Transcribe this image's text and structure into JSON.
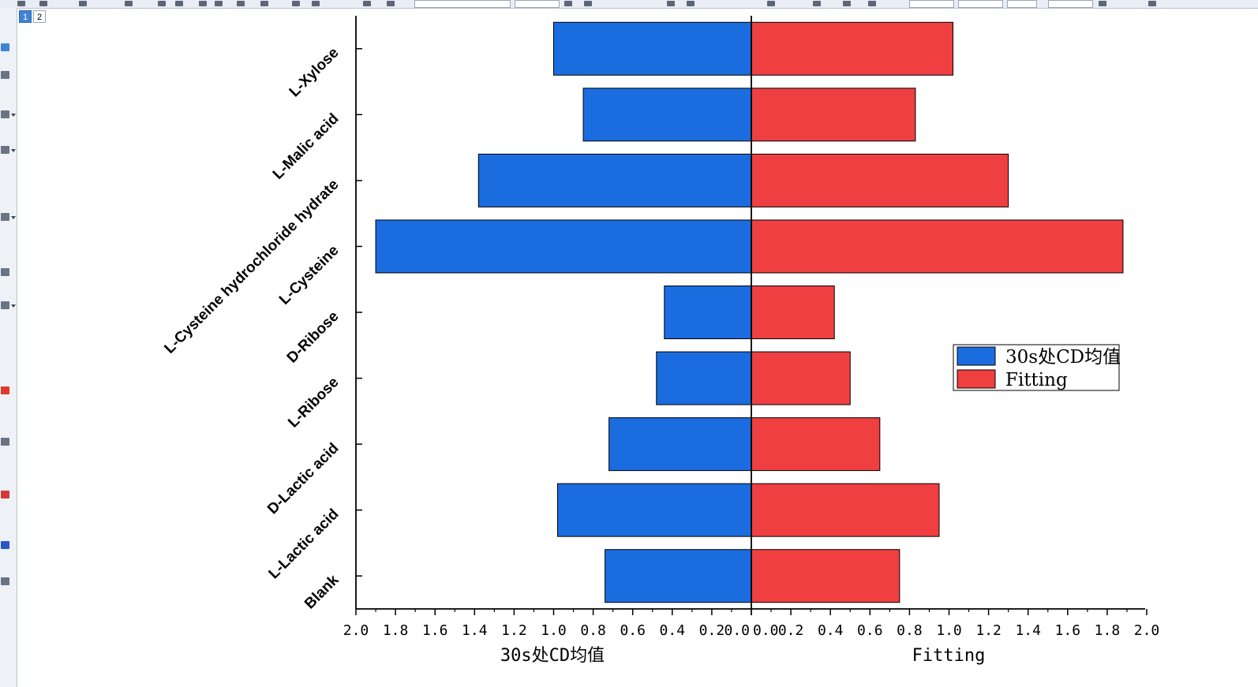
{
  "pages": {
    "tabs": [
      "1",
      "2"
    ],
    "active": "1"
  },
  "colors": {
    "left_series": "#1b6ddf",
    "right_series": "#ef3f41",
    "axis": "#000000"
  },
  "chart_data": {
    "type": "bar",
    "orientation": "horizontal-diverging",
    "categories": [
      "Blank",
      "L-Lactic acid",
      "D-Lactic acid",
      "L-Ribose",
      "D-Ribose",
      "L-Cysteine",
      "L-Cysteine hydrochloride hydrate",
      "L-Malic acid",
      "L-Xylose"
    ],
    "series": [
      {
        "name": "30s处CD均值",
        "side": "left",
        "values": [
          0.74,
          0.98,
          0.72,
          0.48,
          0.44,
          1.9,
          1.38,
          0.85,
          1.0
        ]
      },
      {
        "name": "Fitting",
        "side": "right",
        "values": [
          0.75,
          0.95,
          0.65,
          0.5,
          0.42,
          1.88,
          1.3,
          0.83,
          1.02
        ]
      }
    ],
    "left_axis": {
      "title": "30s处CD均值",
      "range": [
        2.0,
        0.0
      ],
      "ticks": [
        "2.0",
        "1.8",
        "1.6",
        "1.4",
        "1.2",
        "1.0",
        "0.8",
        "0.6",
        "0.4",
        "0.2",
        "0.0"
      ]
    },
    "right_axis": {
      "title": "Fitting",
      "range": [
        0.0,
        2.0
      ],
      "ticks": [
        "0.0",
        "0.2",
        "0.4",
        "0.6",
        "0.8",
        "1.0",
        "1.2",
        "1.4",
        "1.6",
        "1.8",
        "2.0"
      ]
    },
    "legend": {
      "position": "right-middle",
      "entries": [
        "30s处CD均值",
        "Fitting"
      ]
    }
  }
}
